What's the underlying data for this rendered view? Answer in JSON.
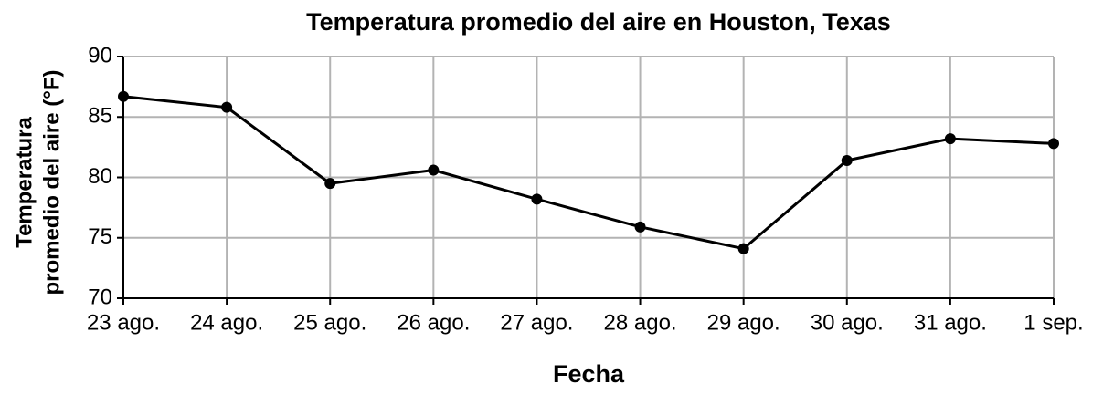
{
  "chart_data": {
    "type": "line",
    "title": "Temperatura promedio del aire en Houston, Texas",
    "xlabel": "Fecha",
    "ylabel": [
      "Temperatura",
      "promedio del aire (°F)"
    ],
    "categories": [
      "23 ago.",
      "24 ago.",
      "25 ago.",
      "26 ago.",
      "27 ago.",
      "28 ago.",
      "29 ago.",
      "30 ago.",
      "31 ago.",
      "1 sep."
    ],
    "values": [
      86.7,
      85.8,
      79.5,
      80.6,
      78.2,
      75.9,
      74.1,
      81.4,
      83.2,
      82.8
    ],
    "color": "#000000",
    "ylim": [
      70,
      90
    ],
    "yticks": [
      70,
      75,
      80,
      85,
      90
    ],
    "grid": true
  }
}
